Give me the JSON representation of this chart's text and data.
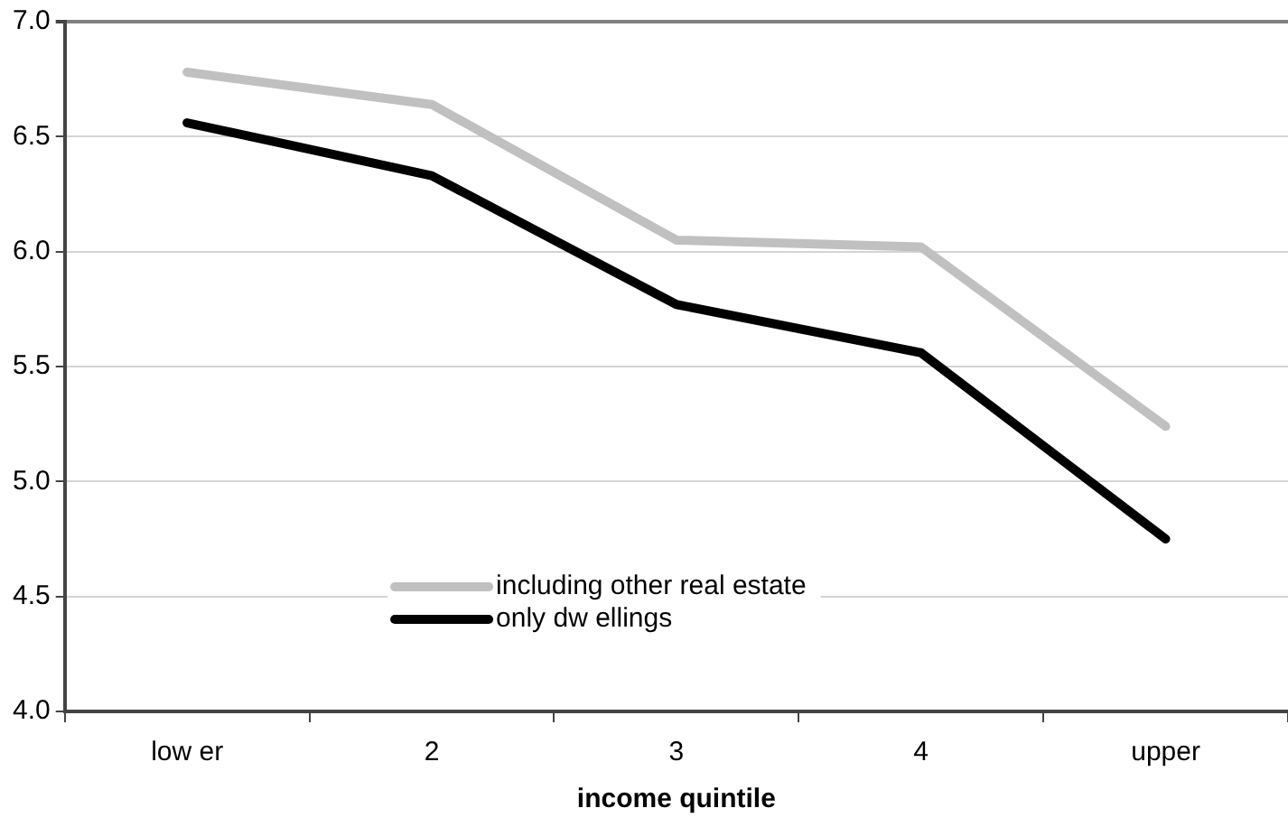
{
  "chart_data": {
    "type": "line",
    "xlabel": "income quintile",
    "categories": [
      "low er",
      "2",
      "3",
      "4",
      "upper"
    ],
    "series": [
      {
        "name": "including other real estate",
        "color": "#c0c0c0",
        "values": [
          6.78,
          6.64,
          6.05,
          6.02,
          5.24
        ]
      },
      {
        "name": "only dw ellings",
        "color": "#000000",
        "values": [
          6.56,
          6.33,
          5.77,
          5.56,
          4.75
        ]
      }
    ],
    "ylim": [
      4.0,
      7.0
    ],
    "yticks": [
      {
        "value": 4,
        "label": "4.0"
      },
      {
        "value": 4.5,
        "label": "4.5"
      },
      {
        "value": 5,
        "label": "5.0"
      },
      {
        "value": 5.5,
        "label": "5.5"
      },
      {
        "value": 6,
        "label": "6.0"
      },
      {
        "value": 6.5,
        "label": "6.5"
      },
      {
        "value": 7,
        "label": "7.0"
      }
    ],
    "grid": "y",
    "legend": "bottom",
    "marker": "none",
    "line_style": "solid"
  }
}
